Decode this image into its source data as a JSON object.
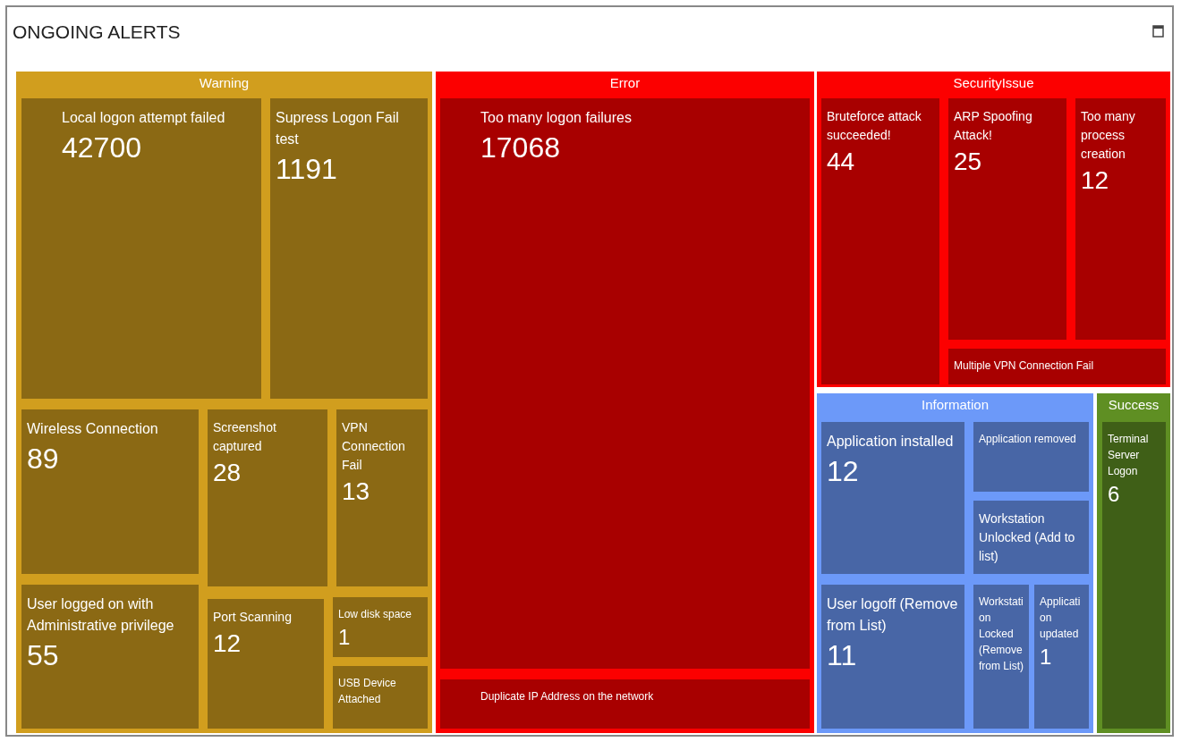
{
  "chart_data": {
    "type": "other",
    "title": "ONGOING ALERTS",
    "data_labels": true,
    "categories": [
      "Local logon attempt failed",
      "Supress Logon Fail test",
      "Wireless Connection",
      "Screenshot captured",
      "VPN Connection Fail",
      "User logged on with Administrative privilege",
      "Port Scanning",
      "Low disk space",
      "USB Device Attached",
      "Too many logon failures",
      "Duplicate IP Address on the network",
      "Bruteforce attack succeeded!",
      "ARP Spoofing Attack!",
      "Too many process creation",
      "Multiple VPN Connection Fail",
      "Application installed",
      "Application removed",
      "Workstation Unlocked (Add to list)",
      "User logoff (Remove from List)",
      "Workstation Locked (Remove from List)",
      "Application updated",
      "Terminal Server Logon"
    ],
    "series": [
      {
        "name": "Warning",
        "color": "#8b6914",
        "values": [
          42700,
          1191,
          89,
          28,
          13,
          55,
          12,
          1,
          null,
          null,
          null,
          null,
          null,
          null,
          null,
          null,
          null,
          null,
          null,
          null,
          null,
          null
        ]
      },
      {
        "name": "Error",
        "color": "#a80000",
        "values": [
          null,
          null,
          null,
          null,
          null,
          null,
          null,
          null,
          null,
          17068,
          null,
          null,
          null,
          null,
          null,
          null,
          null,
          null,
          null,
          null,
          null,
          null
        ]
      },
      {
        "name": "SecurityIssue",
        "color": "#a80000",
        "values": [
          null,
          null,
          null,
          null,
          null,
          null,
          null,
          null,
          null,
          null,
          null,
          44,
          25,
          12,
          null,
          null,
          null,
          null,
          null,
          null,
          null,
          null
        ]
      },
      {
        "name": "Information",
        "color": "#4866a6",
        "values": [
          null,
          null,
          null,
          null,
          null,
          null,
          null,
          null,
          null,
          null,
          null,
          null,
          null,
          null,
          null,
          12,
          null,
          null,
          11,
          null,
          1,
          null
        ]
      },
      {
        "name": "Success",
        "color": "#3f5f17",
        "values": [
          null,
          null,
          null,
          null,
          null,
          null,
          null,
          null,
          null,
          null,
          null,
          null,
          null,
          null,
          null,
          null,
          null,
          null,
          null,
          null,
          null,
          6
        ]
      }
    ]
  }
}
